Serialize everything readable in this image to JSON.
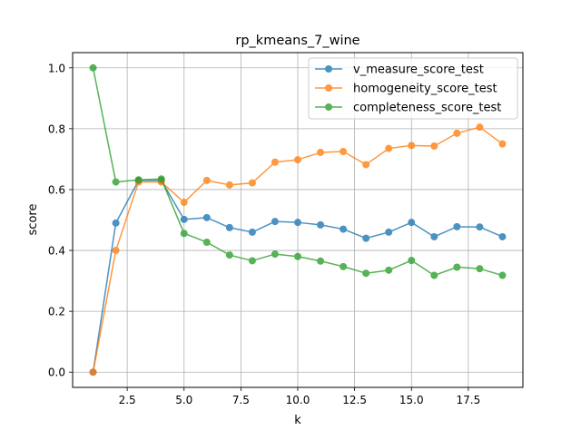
{
  "chart_data": {
    "type": "line",
    "title": "rp_kmeans_7_wine",
    "xlabel": "k",
    "ylabel": "score",
    "xlim": [
      0.1,
      19.9
    ],
    "ylim": [
      -0.05,
      1.05
    ],
    "xticks": [
      2.5,
      5.0,
      7.5,
      10.0,
      12.5,
      15.0,
      17.5
    ],
    "xtick_labels": [
      "2.5",
      "5.0",
      "7.5",
      "10.0",
      "12.5",
      "15.0",
      "17.5"
    ],
    "yticks": [
      0.0,
      0.2,
      0.4,
      0.6,
      0.8,
      1.0
    ],
    "ytick_labels": [
      "0.0",
      "0.2",
      "0.4",
      "0.6",
      "0.8",
      "1.0"
    ],
    "grid": true,
    "legend_position": "upper right",
    "x": [
      1,
      2,
      3,
      4,
      5,
      6,
      7,
      8,
      9,
      10,
      11,
      12,
      13,
      14,
      15,
      16,
      17,
      18,
      19
    ],
    "series": [
      {
        "name": "v_measure_score_test",
        "color": "#1f77b4",
        "values": [
          0.0,
          0.49,
          0.63,
          0.63,
          0.502,
          0.508,
          0.475,
          0.46,
          0.495,
          0.492,
          0.484,
          0.47,
          0.44,
          0.46,
          0.492,
          0.445,
          0.478,
          0.477,
          0.445
        ]
      },
      {
        "name": "homogeneity_score_test",
        "color": "#ff7f0e",
        "values": [
          0.0,
          0.4,
          0.625,
          0.625,
          0.558,
          0.63,
          0.615,
          0.622,
          0.69,
          0.698,
          0.722,
          0.725,
          0.682,
          0.735,
          0.745,
          0.743,
          0.785,
          0.805,
          0.75
        ]
      },
      {
        "name": "completeness_score_test",
        "color": "#2ca02c",
        "values": [
          1.0,
          0.625,
          0.632,
          0.635,
          0.456,
          0.427,
          0.385,
          0.366,
          0.388,
          0.38,
          0.365,
          0.347,
          0.325,
          0.335,
          0.367,
          0.318,
          0.345,
          0.34,
          0.318
        ]
      }
    ]
  }
}
